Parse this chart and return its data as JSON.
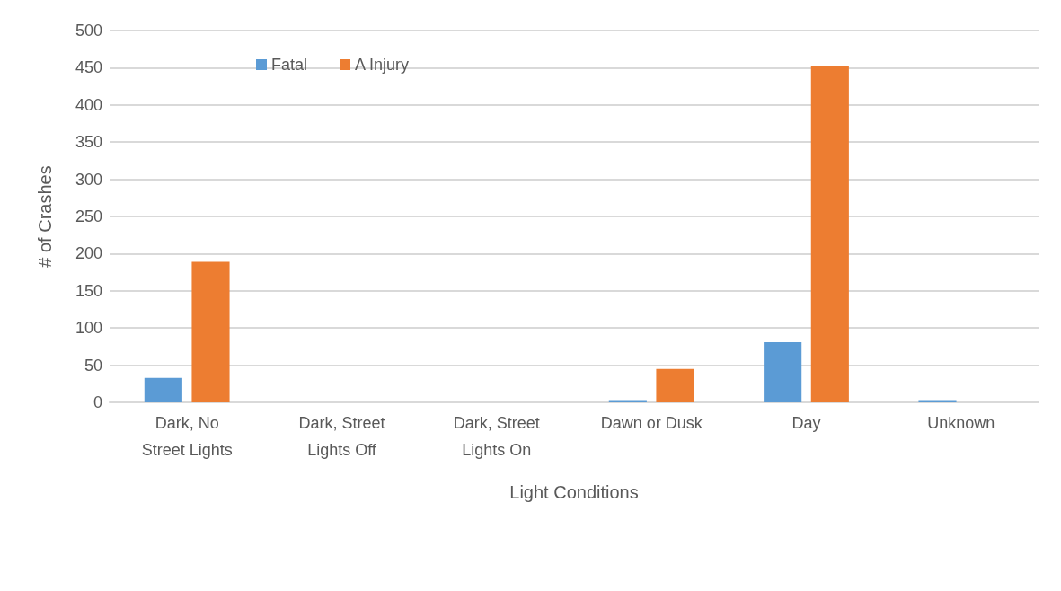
{
  "chart_data": {
    "type": "bar",
    "xlabel": "Light Conditions",
    "ylabel": "# of Crashes",
    "categories": [
      "Dark, No Street Lights",
      "Dark, Street Lights Off",
      "Dark, Street Lights On",
      "Dawn or Dusk",
      "Day",
      "Unknown"
    ],
    "series": [
      {
        "name": "Fatal",
        "color": "#5b9bd5",
        "values": [
          33,
          0,
          0,
          3,
          81,
          3
        ]
      },
      {
        "name": "A Injury",
        "color": "#ed7d31",
        "values": [
          189,
          0,
          0,
          45,
          453,
          0
        ]
      }
    ],
    "ylim": [
      0,
      500
    ],
    "yticks": [
      0,
      50,
      100,
      150,
      200,
      250,
      300,
      350,
      400,
      450,
      500
    ],
    "grid": "y",
    "legend": "top left"
  }
}
